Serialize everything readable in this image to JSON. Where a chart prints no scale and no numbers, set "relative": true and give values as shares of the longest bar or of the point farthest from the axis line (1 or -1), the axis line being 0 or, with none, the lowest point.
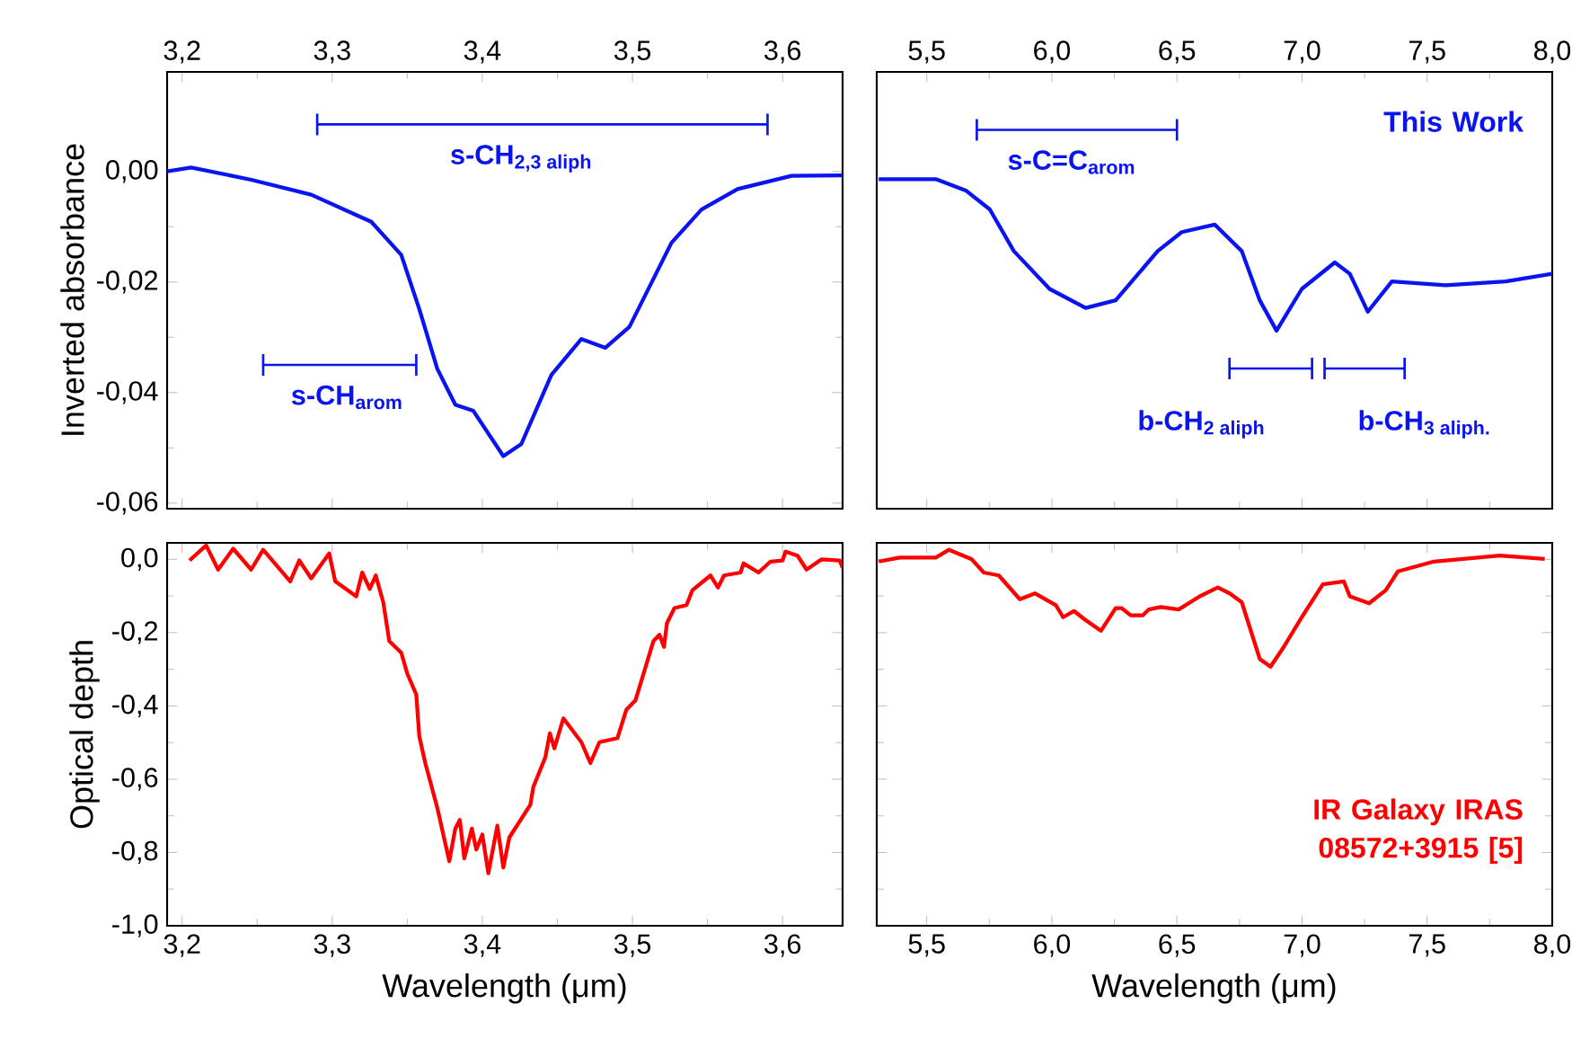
{
  "chart_data": [
    {
      "type": "line",
      "ylabel": "Inverted  absorbance",
      "xlim": [
        3.19,
        3.64
      ],
      "ylim": [
        -0.061,
        0.018
      ],
      "xticks": [
        {
          "value": 3.2,
          "label": "3,2"
        },
        {
          "value": 3.3,
          "label": "3,3"
        },
        {
          "value": 3.4,
          "label": "3,4"
        },
        {
          "value": 3.5,
          "label": "3,5"
        },
        {
          "value": 3.6,
          "label": "3,6"
        }
      ],
      "yticks": [
        {
          "value": -0.06,
          "label": "-0,06"
        },
        {
          "value": -0.04,
          "label": "-0,04"
        },
        {
          "value": -0.02,
          "label": "-0,02"
        },
        {
          "value": 0,
          "label": "0,00"
        }
      ],
      "series": [
        {
          "color": "#0a14f0",
          "x": [
            3.19,
            3.206,
            3.246,
            3.286,
            3.326,
            3.346,
            3.358,
            3.37,
            3.382,
            3.394,
            3.414,
            3.426,
            3.446,
            3.466,
            3.482,
            3.498,
            3.526,
            3.546,
            3.57,
            3.606,
            3.64
          ],
          "values": [
            0.0,
            0.0007,
            -0.0015,
            -0.0042,
            -0.0091,
            -0.0151,
            -0.0249,
            -0.0357,
            -0.0422,
            -0.0433,
            -0.0515,
            -0.0493,
            -0.0368,
            -0.0303,
            -0.0319,
            -0.0281,
            -0.0129,
            -0.0069,
            -0.0032,
            -0.0008,
            -0.0007
          ]
        },
        {
          "color": "#0a14f0",
          "x": [
            3.29,
            3.59
          ],
          "values": [
            0.0085,
            0.0085
          ]
        },
        {
          "color": "#0a14f0",
          "x": [
            3.254,
            3.356
          ],
          "values": [
            -0.035,
            -0.035
          ]
        }
      ],
      "annotations": [
        {
          "text": "s-CH$_{2,3 aliph}$",
          "x": 3.426,
          "y": 0.0085
        },
        {
          "text": "s-CH$_{arom}$",
          "x": 3.31,
          "y": -0.035
        }
      ]
    },
    {
      "type": "line",
      "relative": true,
      "tick_labels": "x",
      "xlim": [
        5.3,
        8.0
      ],
      "xticks": [
        {
          "value": 5.5,
          "label": "5,5"
        },
        {
          "value": 6.0,
          "label": "6,0"
        },
        {
          "value": 6.5,
          "label": "6,5"
        },
        {
          "value": 7.0,
          "label": "7,0"
        },
        {
          "value": 7.5,
          "label": "7,5"
        },
        {
          "value": 8.0,
          "label": "8,0"
        }
      ],
      "series": [
        {
          "color": "#0a14f0",
          "x": [
            5.308,
            5.536,
            5.656,
            5.752,
            5.848,
            5.991,
            6.135,
            6.255,
            6.423,
            6.519,
            6.651,
            6.759,
            6.831,
            6.898,
            6.999,
            7.131,
            7.191,
            7.263,
            7.359,
            7.574,
            7.814,
            8.0
          ],
          "values": [
            0.87,
            0.87,
            0.84,
            0.79,
            0.68,
            0.58,
            0.53,
            0.55,
            0.68,
            0.73,
            0.75,
            0.68,
            0.55,
            0.47,
            0.58,
            0.65,
            0.62,
            0.52,
            0.6,
            0.59,
            0.6,
            0.62
          ]
        },
        {
          "color": "#0a14f0",
          "x": [
            5.7,
            6.5
          ],
          "values": [
            1,
            1
          ]
        },
        {
          "color": "#0a14f0",
          "x": [
            6.71,
            7.04
          ],
          "values": [
            0.37,
            0.37
          ]
        },
        {
          "color": "#0a14f0",
          "x": [
            7.09,
            7.41
          ],
          "values": [
            0.37,
            0.37
          ]
        }
      ],
      "annotations": [
        "This Work",
        {
          "text": "s-C=C$_{arom}$",
          "x": 6.08,
          "y": 1
        },
        "b-CH$_{2 aliph}$",
        "b-CH$_{3 aliph.}$"
      ]
    },
    {
      "type": "line",
      "xlabel": "Wavelength (μm)",
      "ylabel": "Optical depth",
      "xlim": [
        3.19,
        3.64
      ],
      "ylim": [
        -1.0,
        0.045
      ],
      "xticks": [
        {
          "value": 3.2,
          "label": "3,2"
        },
        {
          "value": 3.3,
          "label": "3,3"
        },
        {
          "value": 3.4,
          "label": "3,4"
        },
        {
          "value": 3.5,
          "label": "3,5"
        },
        {
          "value": 3.6,
          "label": "3,6"
        }
      ],
      "yticks": [
        {
          "value": -1.0,
          "label": "-1,0"
        },
        {
          "value": -0.8,
          "label": "-0,8"
        },
        {
          "value": -0.6,
          "label": "-0,6"
        },
        {
          "value": -0.4,
          "label": "-0,4"
        },
        {
          "value": -0.2,
          "label": "-0,2"
        },
        {
          "value": 0.0,
          "label": "0,0"
        }
      ],
      "series": [
        {
          "color": "#ff0000",
          "x": [
            3.205,
            3.216,
            3.224,
            3.234,
            3.246,
            3.254,
            3.272,
            3.278,
            3.286,
            3.298,
            3.302,
            3.316,
            3.32,
            3.325,
            3.329,
            3.334,
            3.338,
            3.346,
            3.35,
            3.356,
            3.358,
            3.362,
            3.37,
            3.378,
            3.382,
            3.385,
            3.388,
            3.393,
            3.396,
            3.4,
            3.404,
            3.41,
            3.414,
            3.418,
            3.432,
            3.434,
            3.442,
            3.445,
            3.448,
            3.454,
            3.466,
            3.472,
            3.478,
            3.49,
            3.496,
            3.502,
            3.514,
            3.518,
            3.521,
            3.523,
            3.528,
            3.536,
            3.54,
            3.552,
            3.557,
            3.561,
            3.572,
            3.574,
            3.584,
            3.592,
            3.6,
            3.602,
            3.61,
            3.616,
            3.626,
            3.638,
            3.64
          ],
          "values": [
            -0.003,
            0.038,
            -0.028,
            0.029,
            -0.028,
            0.026,
            -0.06,
            -0.003,
            -0.052,
            0.016,
            -0.06,
            -0.101,
            -0.036,
            -0.081,
            -0.044,
            -0.117,
            -0.223,
            -0.255,
            -0.312,
            -0.369,
            -0.483,
            -0.556,
            -0.678,
            -0.824,
            -0.735,
            -0.711,
            -0.816,
            -0.735,
            -0.792,
            -0.751,
            -0.857,
            -0.727,
            -0.841,
            -0.759,
            -0.67,
            -0.621,
            -0.54,
            -0.475,
            -0.516,
            -0.434,
            -0.499,
            -0.556,
            -0.499,
            -0.488,
            -0.41,
            -0.385,
            -0.223,
            -0.206,
            -0.239,
            -0.174,
            -0.133,
            -0.125,
            -0.084,
            -0.044,
            -0.077,
            -0.044,
            -0.036,
            -0.011,
            -0.036,
            -0.006,
            -0.003,
            0.021,
            0.01,
            -0.028,
            0.0,
            -0.003,
            -0.023
          ]
        }
      ]
    },
    {
      "type": "line",
      "xlabel": "Wavelength (μm)",
      "tick_labels": "x",
      "xlim": [
        5.3,
        8.0
      ],
      "ylim": [
        -1.0,
        0.045
      ],
      "xticks": [
        {
          "value": 5.5,
          "label": "5,5"
        },
        {
          "value": 6.0,
          "label": "6,0"
        },
        {
          "value": 6.5,
          "label": "6,5"
        },
        {
          "value": 7.0,
          "label": "7,0"
        },
        {
          "value": 7.5,
          "label": "7,5"
        },
        {
          "value": 8.0,
          "label": "8,0"
        }
      ],
      "series": [
        {
          "color": "#ff0000",
          "x": [
            5.308,
            5.392,
            5.536,
            5.589,
            5.68,
            5.728,
            5.788,
            5.872,
            5.932,
            6.016,
            6.045,
            6.088,
            6.135,
            6.196,
            6.255,
            6.279,
            6.315,
            6.363,
            6.387,
            6.435,
            6.507,
            6.591,
            6.663,
            6.711,
            6.759,
            6.831,
            6.874,
            6.927,
            6.999,
            7.083,
            7.167,
            7.191,
            7.268,
            7.335,
            7.383,
            7.527,
            7.79,
            7.97
          ],
          "values": [
            -0.006,
            0.005,
            0.005,
            0.026,
            0.0,
            -0.036,
            -0.044,
            -0.109,
            -0.093,
            -0.125,
            -0.158,
            -0.141,
            -0.166,
            -0.195,
            -0.133,
            -0.133,
            -0.153,
            -0.153,
            -0.137,
            -0.13,
            -0.137,
            -0.101,
            -0.077,
            -0.093,
            -0.117,
            -0.272,
            -0.293,
            -0.239,
            -0.158,
            -0.068,
            -0.06,
            -0.101,
            -0.12,
            -0.084,
            -0.033,
            -0.006,
            0.01,
            0.001
          ]
        }
      ],
      "annotations": [
        "IR Galaxy IRAS 08572+3915 [5]"
      ]
    }
  ]
}
